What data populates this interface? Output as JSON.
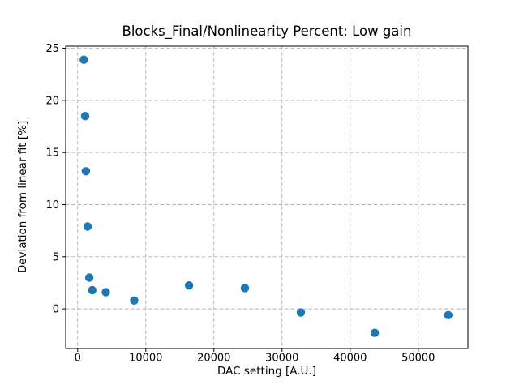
{
  "figure": {
    "kind": "matplotlib-style scatter figure"
  },
  "chart_data": {
    "type": "scatter",
    "title": "Blocks_Final/Nonlinearity Percent: Low gain",
    "xlabel": "DAC setting [A.U.]",
    "ylabel": "Deviation from linear fit [%]",
    "xlim": [
      -1760,
      57290
    ],
    "ylim": [
      -3.8,
      25.2
    ],
    "xticks": [
      0,
      10000,
      20000,
      30000,
      40000,
      50000
    ],
    "xtick_labels": [
      "0",
      "10000",
      "20000",
      "30000",
      "40000",
      "50000"
    ],
    "yticks": [
      0,
      5,
      10,
      15,
      20,
      25
    ],
    "ytick_labels": [
      "0",
      "5",
      "10",
      "15",
      "20",
      "25"
    ],
    "grid": true,
    "grid_style": "dashed",
    "grid_color": "#b0b0b0",
    "marker_color": "#1f77b4",
    "marker_radius": 5.2,
    "legend": "none",
    "points": [
      [
        900,
        23.9
      ],
      [
        1100,
        18.5
      ],
      [
        1200,
        13.2
      ],
      [
        1460,
        7.9
      ],
      [
        1700,
        3.0
      ],
      [
        2140,
        1.8
      ],
      [
        4130,
        1.6
      ],
      [
        8300,
        0.8
      ],
      [
        16350,
        2.25
      ],
      [
        24550,
        2.0
      ],
      [
        32770,
        -0.35
      ],
      [
        43610,
        -2.3
      ],
      [
        54410,
        -0.6
      ]
    ]
  }
}
